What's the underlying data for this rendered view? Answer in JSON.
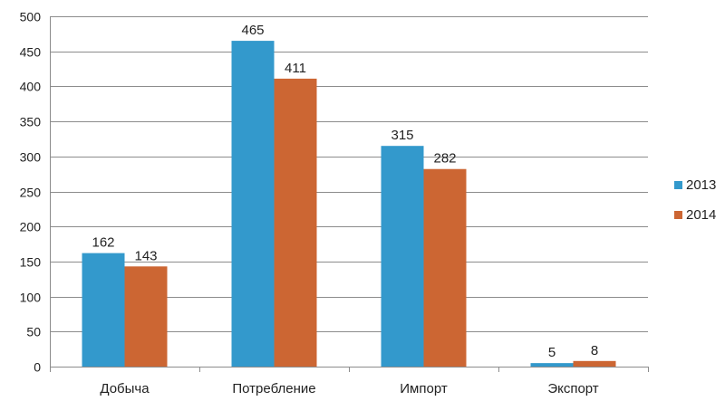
{
  "chart_data": {
    "type": "bar",
    "title": "",
    "xlabel": "",
    "ylabel": "",
    "categories": [
      "Добыча",
      "Потребление",
      "Импорт",
      "Экспорт"
    ],
    "series": [
      {
        "name": "2013",
        "values": [
          162,
          465,
          315,
          5
        ],
        "color": "#3399cc"
      },
      {
        "name": "2014",
        "values": [
          143,
          411,
          282,
          8
        ],
        "color": "#cc6633"
      }
    ],
    "ylim": [
      0,
      500
    ],
    "yticks": [
      0,
      50,
      100,
      150,
      200,
      250,
      300,
      350,
      400,
      450,
      500
    ],
    "grid": true,
    "legend": "right",
    "data_labels": true
  }
}
